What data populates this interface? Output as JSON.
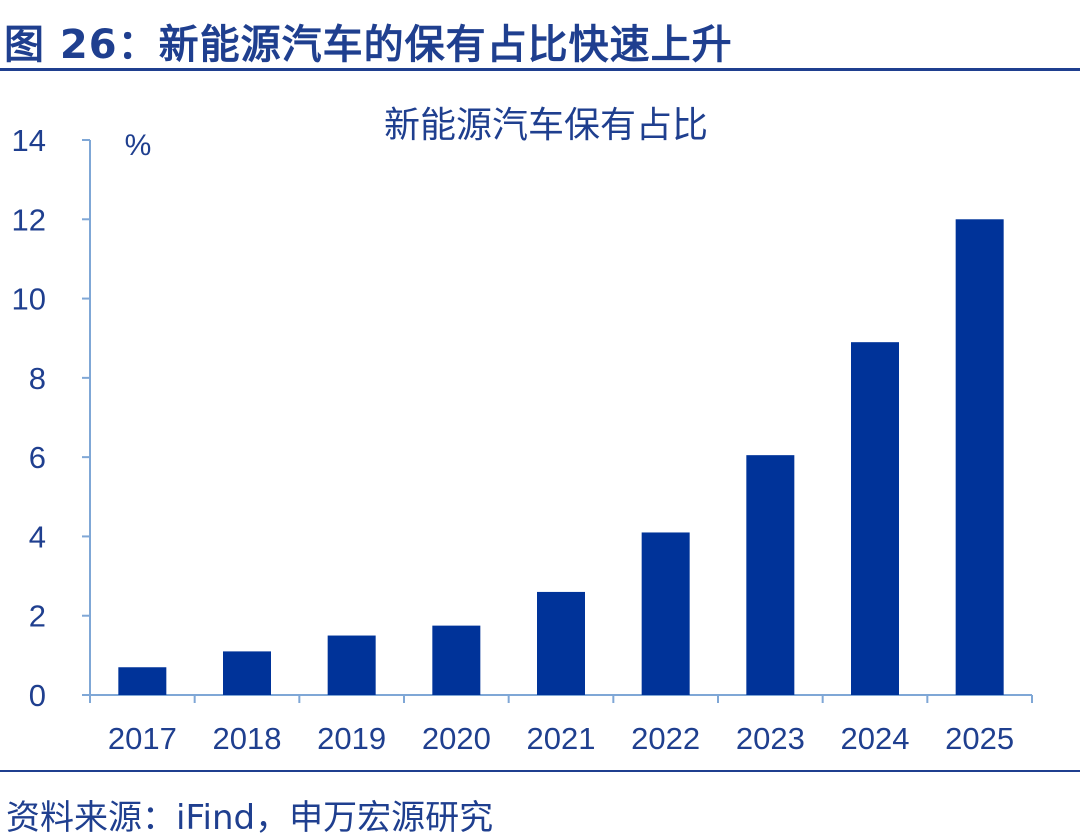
{
  "figure": {
    "title": "图 26：新能源汽车的保有占比快速上升",
    "source": "资料来源：iFind，申万宏源研究"
  },
  "colors": {
    "bar": "#003399",
    "axis": "#7fa7d6",
    "text": "#1f3f8f"
  },
  "chart_data": {
    "type": "bar",
    "title": "新能源汽车保有占比",
    "unit_label": "%",
    "xlabel": "",
    "ylabel": "%",
    "categories": [
      "2017",
      "2018",
      "2019",
      "2020",
      "2021",
      "2022",
      "2023",
      "2024",
      "2025"
    ],
    "values": [
      0.7,
      1.1,
      1.5,
      1.75,
      2.6,
      4.1,
      6.05,
      8.9,
      12.0
    ],
    "ylim": [
      0,
      14
    ],
    "yticks": [
      0,
      2,
      4,
      6,
      8,
      10,
      12,
      14
    ],
    "grid": false,
    "legend": false
  }
}
